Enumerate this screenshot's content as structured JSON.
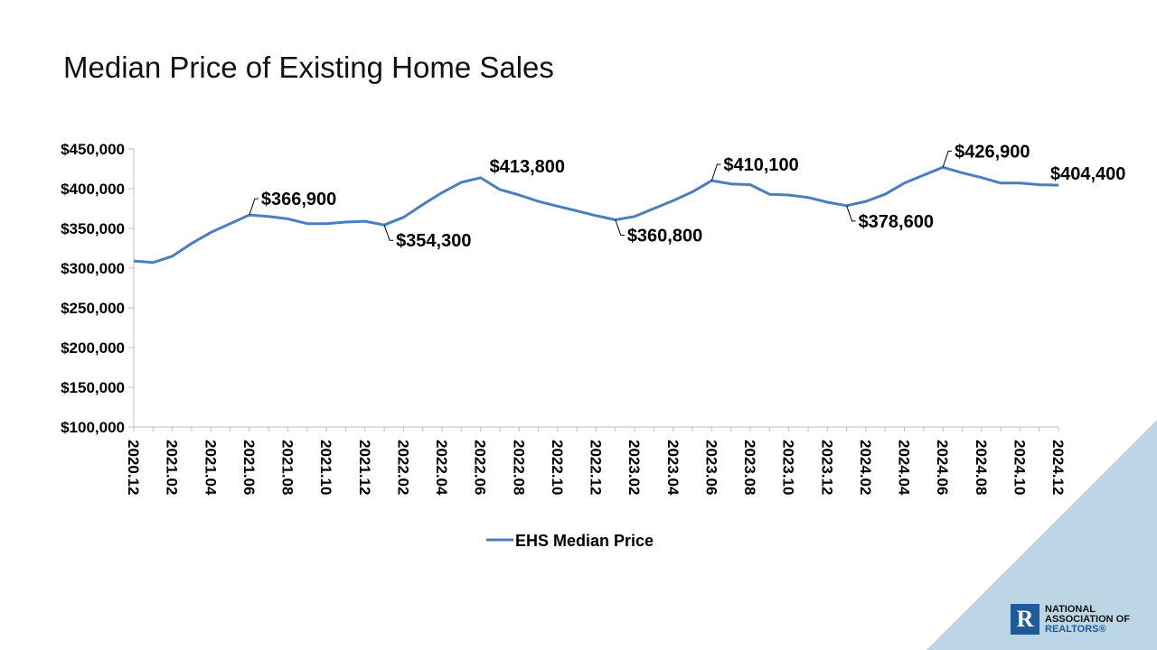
{
  "chart_data": {
    "type": "line",
    "title": "Median Price of Existing Home Sales",
    "xlabel": "",
    "ylabel": "",
    "ylim": [
      100000,
      450000
    ],
    "yticks": [
      100000,
      150000,
      200000,
      250000,
      300000,
      350000,
      400000,
      450000
    ],
    "ytick_labels": [
      "$100,000",
      "$150,000",
      "$200,000",
      "$250,000",
      "$300,000",
      "$350,000",
      "$400,000",
      "$450,000"
    ],
    "grid": false,
    "legend_position": "bottom",
    "line_color": "#4a7ebf",
    "x": [
      "2020.12",
      "2021.01",
      "2021.02",
      "2021.03",
      "2021.04",
      "2021.05",
      "2021.06",
      "2021.07",
      "2021.08",
      "2021.09",
      "2021.10",
      "2021.11",
      "2021.12",
      "2022.01",
      "2022.02",
      "2022.03",
      "2022.04",
      "2022.05",
      "2022.06",
      "2022.07",
      "2022.08",
      "2022.09",
      "2022.10",
      "2022.11",
      "2022.12",
      "2023.01",
      "2023.02",
      "2023.03",
      "2023.04",
      "2023.05",
      "2023.06",
      "2023.07",
      "2023.08",
      "2023.09",
      "2023.10",
      "2023.11",
      "2023.12",
      "2024.01",
      "2024.02",
      "2024.03",
      "2024.04",
      "2024.05",
      "2024.06",
      "2024.07",
      "2024.08",
      "2024.09",
      "2024.10",
      "2024.11",
      "2024.12"
    ],
    "xtick_labels": [
      "2020.12",
      "2021.02",
      "2021.04",
      "2021.06",
      "2021.08",
      "2021.10",
      "2021.12",
      "2022.02",
      "2022.04",
      "2022.06",
      "2022.08",
      "2022.10",
      "2022.12",
      "2023.02",
      "2023.04",
      "2023.06",
      "2023.08",
      "2023.10",
      "2023.12",
      "2024.02",
      "2024.04",
      "2024.06",
      "2024.08",
      "2024.10",
      "2024.12"
    ],
    "series": [
      {
        "name": "EHS Median Price",
        "values": [
          309000,
          307000,
          315000,
          331000,
          345000,
          356000,
          366900,
          365000,
          362000,
          356000,
          356000,
          358000,
          359000,
          354300,
          364000,
          380000,
          395000,
          408000,
          413800,
          399000,
          392000,
          384000,
          378000,
          372000,
          366000,
          360800,
          365000,
          375000,
          385000,
          396000,
          410100,
          406000,
          405000,
          393000,
          392000,
          389000,
          383000,
          378600,
          384000,
          393000,
          407000,
          417000,
          426900,
          420000,
          414000,
          407000,
          407000,
          405000,
          404400
        ]
      }
    ],
    "annotations": [
      {
        "x": "2021.06",
        "label": "$366,900"
      },
      {
        "x": "2022.01",
        "label": "$354,300"
      },
      {
        "x": "2022.06",
        "label": "$413,800"
      },
      {
        "x": "2023.01",
        "label": "$360,800"
      },
      {
        "x": "2023.06",
        "label": "$410,100"
      },
      {
        "x": "2024.01",
        "label": "$378,600"
      },
      {
        "x": "2024.06",
        "label": "$426,900"
      },
      {
        "x": "2024.12",
        "label": "$404,400"
      }
    ]
  },
  "logo": {
    "line1": "NATIONAL",
    "line2": "ASSOCIATION OF",
    "line3": "REALTORS®",
    "mark": "R"
  },
  "colors": {
    "corner_triangle": "#bcd6e6",
    "logo_blue": "#1e5a9c"
  }
}
